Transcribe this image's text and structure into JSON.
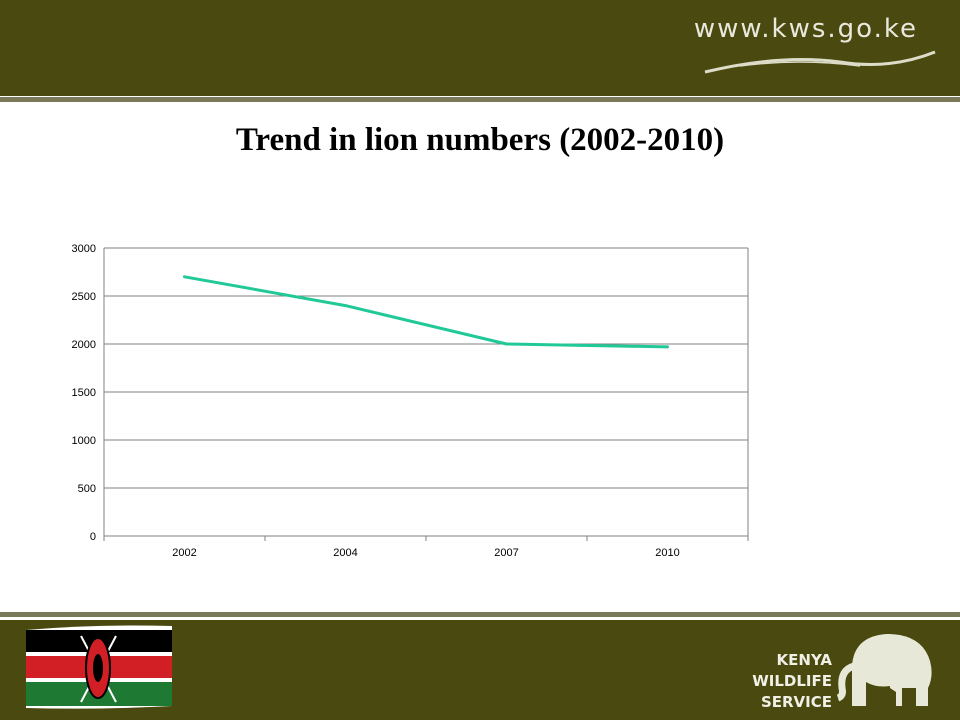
{
  "header": {
    "url": "www.kws.go.ke"
  },
  "slide": {
    "title": "Trend in lion numbers (2002-2010)"
  },
  "footer": {
    "org_lines": [
      "KENYA",
      "WILDLIFE",
      "SERVICE"
    ]
  },
  "colors": {
    "band": "#4a4a10",
    "series_line": "#20c997"
  },
  "chart_data": {
    "type": "line",
    "categories": [
      "2002",
      "2004",
      "2007",
      "2010"
    ],
    "series": [
      {
        "values": [
          2700,
          2400,
          2000,
          1970
        ]
      }
    ],
    "xlabel": "",
    "ylabel": "",
    "ylim": [
      0,
      3000
    ],
    "yticks": [
      0,
      500,
      1000,
      1500,
      2000,
      2500,
      3000
    ],
    "grid": true,
    "legend": "none"
  }
}
